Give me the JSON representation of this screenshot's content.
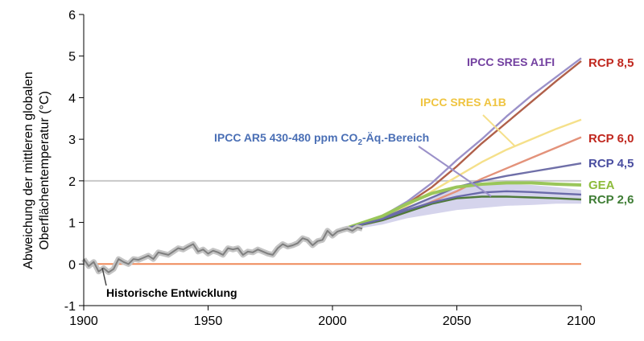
{
  "chart_data": {
    "type": "line",
    "ylabel_line1": "Abweichung der mittleren globalen",
    "ylabel_line2": "Oberflächentemperatur (°C)",
    "xlim": [
      1900,
      2100
    ],
    "ylim": [
      -1,
      6
    ],
    "xticks": [
      1900,
      1950,
      2000,
      2050,
      2100
    ],
    "yticks": [
      -1,
      0,
      1,
      2,
      3,
      4,
      5,
      6
    ],
    "reference_lines": [
      {
        "y": 0,
        "color": "#ef8a5a"
      },
      {
        "y": 2,
        "color": "#c8c8c8"
      }
    ],
    "historical": {
      "name": "Historische Entwicklung",
      "color": "#7f7f7f",
      "x": [
        1900,
        1902,
        1904,
        1906,
        1908,
        1910,
        1912,
        1914,
        1916,
        1918,
        1920,
        1922,
        1924,
        1926,
        1928,
        1930,
        1932,
        1934,
        1936,
        1938,
        1940,
        1942,
        1944,
        1946,
        1948,
        1950,
        1952,
        1954,
        1956,
        1958,
        1960,
        1962,
        1964,
        1966,
        1968,
        1970,
        1972,
        1974,
        1976,
        1978,
        1980,
        1982,
        1984,
        1986,
        1988,
        1990,
        1992,
        1994,
        1996,
        1998,
        2000,
        2002,
        2004,
        2006,
        2008,
        2010,
        2012
      ],
      "y": [
        0.12,
        -0.05,
        0.05,
        -0.18,
        -0.1,
        -0.2,
        -0.12,
        0.12,
        0.05,
        0.0,
        0.12,
        0.1,
        0.15,
        0.2,
        0.12,
        0.28,
        0.25,
        0.22,
        0.3,
        0.38,
        0.35,
        0.42,
        0.48,
        0.3,
        0.35,
        0.25,
        0.32,
        0.28,
        0.22,
        0.38,
        0.35,
        0.38,
        0.22,
        0.3,
        0.28,
        0.35,
        0.3,
        0.25,
        0.22,
        0.38,
        0.48,
        0.42,
        0.45,
        0.5,
        0.62,
        0.58,
        0.45,
        0.55,
        0.58,
        0.8,
        0.68,
        0.78,
        0.82,
        0.85,
        0.8,
        0.88,
        0.85
      ]
    },
    "band": {
      "name": "IPCC AR5 430-480 ppm CO2-Äq.-Bereich",
      "color": "#b3b1dc",
      "x": [
        2005,
        2020,
        2030,
        2040,
        2050,
        2060,
        2070,
        2080,
        2090,
        2100
      ],
      "upper": [
        0.85,
        1.1,
        1.35,
        1.6,
        1.8,
        1.9,
        1.92,
        1.9,
        1.85,
        1.78
      ],
      "lower": [
        0.8,
        0.95,
        1.1,
        1.2,
        1.3,
        1.35,
        1.4,
        1.42,
        1.45,
        1.45
      ]
    },
    "series": [
      {
        "name": "IPCC SRES A1FI",
        "color": "#9b91c9",
        "x": [
          2005,
          2020,
          2030,
          2040,
          2050,
          2060,
          2070,
          2080,
          2090,
          2100
        ],
        "y": [
          0.85,
          1.15,
          1.5,
          1.95,
          2.5,
          3.0,
          3.55,
          4.05,
          4.5,
          4.95
        ]
      },
      {
        "name": "RCP 8,5",
        "color": "#b0604a",
        "x": [
          2005,
          2020,
          2030,
          2040,
          2050,
          2060,
          2070,
          2080,
          2090,
          2100
        ],
        "y": [
          0.85,
          1.1,
          1.45,
          1.85,
          2.35,
          2.9,
          3.4,
          3.9,
          4.4,
          4.88
        ]
      },
      {
        "name": "IPCC SRES A1B",
        "color": "#f5e08a",
        "x": [
          2005,
          2020,
          2030,
          2040,
          2050,
          2060,
          2070,
          2080,
          2090,
          2100
        ],
        "y": [
          0.85,
          1.12,
          1.4,
          1.75,
          2.1,
          2.45,
          2.75,
          3.0,
          3.25,
          3.47
        ]
      },
      {
        "name": "RCP 6,0",
        "color": "#e3927a",
        "x": [
          2005,
          2020,
          2030,
          2040,
          2050,
          2060,
          2070,
          2080,
          2090,
          2100
        ],
        "y": [
          0.85,
          1.05,
          1.25,
          1.5,
          1.75,
          2.05,
          2.3,
          2.55,
          2.8,
          3.05
        ]
      },
      {
        "name": "RCP 4,5",
        "color": "#6f6fa8",
        "x": [
          2005,
          2020,
          2030,
          2040,
          2050,
          2060,
          2070,
          2080,
          2090,
          2100
        ],
        "y": [
          0.85,
          1.1,
          1.35,
          1.6,
          1.85,
          2.0,
          2.12,
          2.22,
          2.32,
          2.42
        ]
      },
      {
        "name": "GEA",
        "color": "#9ac65a",
        "x": [
          2005,
          2020,
          2030,
          2040,
          2050,
          2060,
          2070,
          2080,
          2090,
          2100
        ],
        "y": [
          0.85,
          1.15,
          1.45,
          1.7,
          1.85,
          1.92,
          1.95,
          1.95,
          1.92,
          1.9
        ]
      },
      {
        "name": "RCP 2,6",
        "color": "#4f7a3a",
        "x": [
          2005,
          2020,
          2030,
          2040,
          2050,
          2060,
          2070,
          2080,
          2090,
          2100
        ],
        "y": [
          0.85,
          1.05,
          1.25,
          1.45,
          1.58,
          1.62,
          1.62,
          1.6,
          1.58,
          1.55
        ]
      },
      {
        "name": "IPCC AR5 430-480 ppm",
        "color": "#6a6aaa",
        "x": [
          2005,
          2020,
          2030,
          2040,
          2050,
          2060,
          2070,
          2080,
          2090,
          2100
        ],
        "y": [
          0.85,
          1.08,
          1.3,
          1.48,
          1.62,
          1.72,
          1.75,
          1.73,
          1.7,
          1.67
        ]
      }
    ],
    "annotations": {
      "a1fi": {
        "text": "IPCC SRES A1FI",
        "color": "#7340a0"
      },
      "a1b": {
        "text": "IPCC SRES A1B",
        "color": "#efc440"
      },
      "ar5_prefix": {
        "text": "IPCC AR5 430-480 ppm CO",
        "color": "#4a6fb5"
      },
      "ar5_sub": {
        "text": "2",
        "color": "#4a6fb5"
      },
      "ar5_suffix": {
        "text": "-Äq.-Bereich",
        "color": "#4a6fb5"
      },
      "hist": {
        "text": "Historische Entwicklung",
        "color": "#000000"
      }
    },
    "rcp_labels": [
      {
        "text": "RCP 8,5",
        "color": "#c0281f"
      },
      {
        "text": "RCP 6,0",
        "color": "#c0281f"
      },
      {
        "text": "RCP 4,5",
        "color": "#4a4ea0"
      },
      {
        "text": "GEA",
        "color": "#8dbb3b"
      },
      {
        "text": "RCP 2,6",
        "color": "#3f7d35"
      }
    ]
  }
}
